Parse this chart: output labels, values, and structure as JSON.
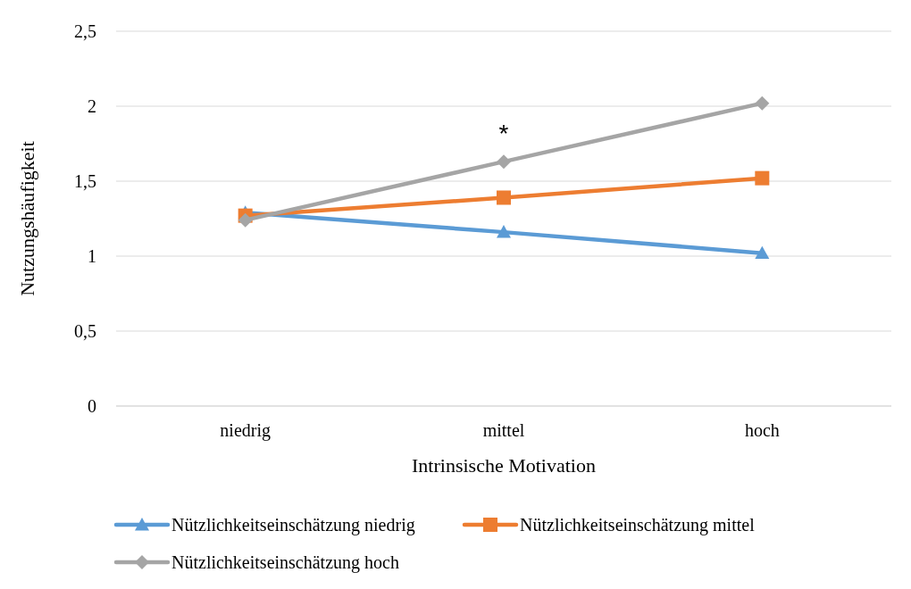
{
  "chart_data": {
    "type": "line",
    "xlabel": "Intrinsische Motivation",
    "ylabel": "Nutzungshäufigkeit",
    "categories": [
      "niedrig",
      "mittel",
      "hoch"
    ],
    "series": [
      {
        "name": "Nützlichkeitseinschätzung niedrig",
        "color": "#5b9bd5",
        "marker": "triangle",
        "values": [
          1.29,
          1.16,
          1.02
        ]
      },
      {
        "name": "Nützlichkeitseinschätzung mittel",
        "color": "#ed7d31",
        "marker": "square",
        "values": [
          1.27,
          1.39,
          1.52
        ]
      },
      {
        "name": "Nützlichkeitseinschätzung hoch",
        "color": "#a5a5a5",
        "marker": "diamond",
        "values": [
          1.24,
          1.63,
          2.02
        ]
      }
    ],
    "ylim": [
      0,
      2.5
    ],
    "yticks": [
      0,
      {
        "value": 0.5,
        "label": "0,5"
      },
      1,
      {
        "value": 1.5,
        "label": "1,5"
      },
      2,
      {
        "value": 2.5,
        "label": "2,5"
      }
    ],
    "grid": "y",
    "legend": "bottom",
    "line_style": "solid",
    "annotations": [
      {
        "text": "*",
        "x": "mittel",
        "y": 1.63
      }
    ]
  }
}
